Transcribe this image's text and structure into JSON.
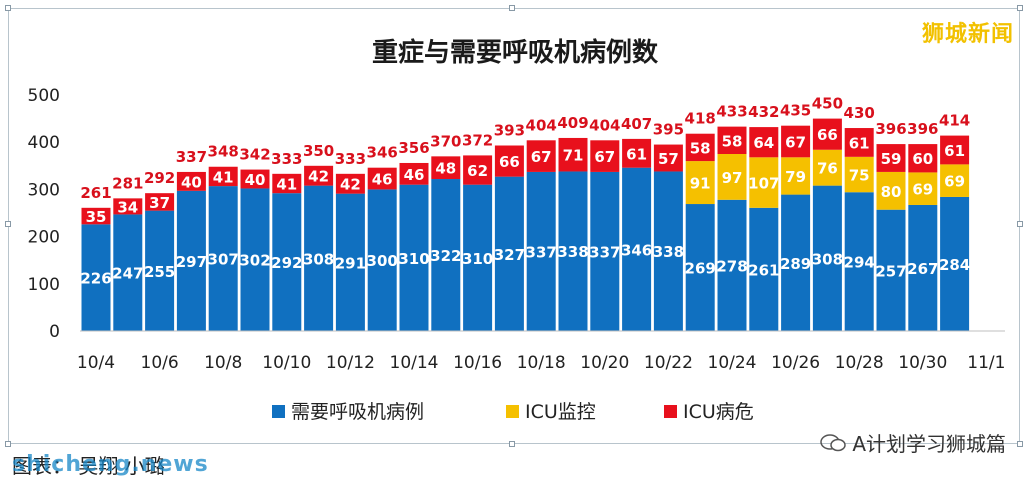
{
  "chart_data": {
    "type": "bar",
    "stacked": true,
    "title": "重症与需要呼吸机病例数",
    "categories": [
      "10/4",
      "10/5",
      "10/6",
      "10/7",
      "10/8",
      "10/9",
      "10/10",
      "10/11",
      "10/12",
      "10/13",
      "10/14",
      "10/15",
      "10/16",
      "10/17",
      "10/18",
      "10/19",
      "10/20",
      "10/21",
      "10/22",
      "10/23",
      "10/24",
      "10/25",
      "10/26",
      "10/27",
      "10/28",
      "10/29",
      "10/30",
      "10/31"
    ],
    "xticks_labeled": [
      "10/4",
      "10/6",
      "10/8",
      "10/10",
      "10/12",
      "10/14",
      "10/16",
      "10/18",
      "10/20",
      "10/22",
      "10/24",
      "10/26",
      "10/28",
      "10/30",
      "11/1"
    ],
    "series": [
      {
        "name": "需要呼吸机病例",
        "color": "#1070c0",
        "values": [
          226,
          247,
          255,
          297,
          307,
          302,
          292,
          308,
          291,
          300,
          310,
          322,
          310,
          327,
          337,
          338,
          337,
          346,
          338,
          269,
          278,
          261,
          289,
          308,
          294,
          257,
          267,
          284
        ]
      },
      {
        "name": "ICU监控",
        "color": "#f5c000",
        "values": [
          0,
          0,
          0,
          0,
          0,
          0,
          0,
          0,
          0,
          0,
          0,
          0,
          0,
          0,
          0,
          0,
          0,
          0,
          0,
          91,
          97,
          107,
          79,
          76,
          75,
          80,
          69,
          69
        ]
      },
      {
        "name": "ICU病危",
        "color": "#e8101c",
        "values": [
          35,
          34,
          37,
          40,
          41,
          40,
          41,
          42,
          42,
          46,
          46,
          48,
          62,
          66,
          67,
          71,
          67,
          61,
          57,
          58,
          58,
          64,
          67,
          66,
          61,
          59,
          60,
          61
        ]
      }
    ],
    "totals": [
      261,
      281,
      292,
      337,
      348,
      342,
      333,
      350,
      333,
      346,
      356,
      370,
      372,
      393,
      404,
      409,
      404,
      407,
      395,
      418,
      433,
      432,
      435,
      450,
      430,
      396,
      396,
      414
    ],
    "yticks": [
      0,
      100,
      200,
      300,
      400,
      500
    ],
    "ylim": [
      0,
      500
    ],
    "legend_position": "bottom",
    "grid": false
  },
  "watermark_top": "狮城新闻",
  "bottom_note": "图表：  吴翔 小璐",
  "bottom_logo": "shicheng.news",
  "wechat_label": "A计划学习狮城篇"
}
